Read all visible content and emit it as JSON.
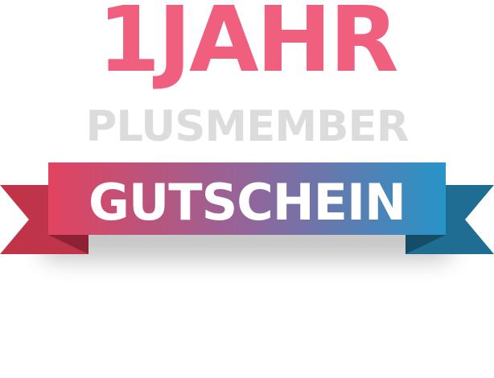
{
  "badge": {
    "headline": "1JAHR",
    "subline": "PLUSMEMBER",
    "ribbon_label": "GUTSCHEIN"
  },
  "colors": {
    "headline": "#f0607e",
    "subline": "#dcdcdc",
    "ribbon_left": "#e2435f",
    "ribbon_mid": "#93659a",
    "ribbon_right": "#2794c8",
    "tail_left": "#c0344a",
    "tail_left_shade": "#8e2233",
    "tail_right": "#1f6d92",
    "tail_right_shade": "#154d68",
    "ribbon_text": "#ffffff"
  }
}
